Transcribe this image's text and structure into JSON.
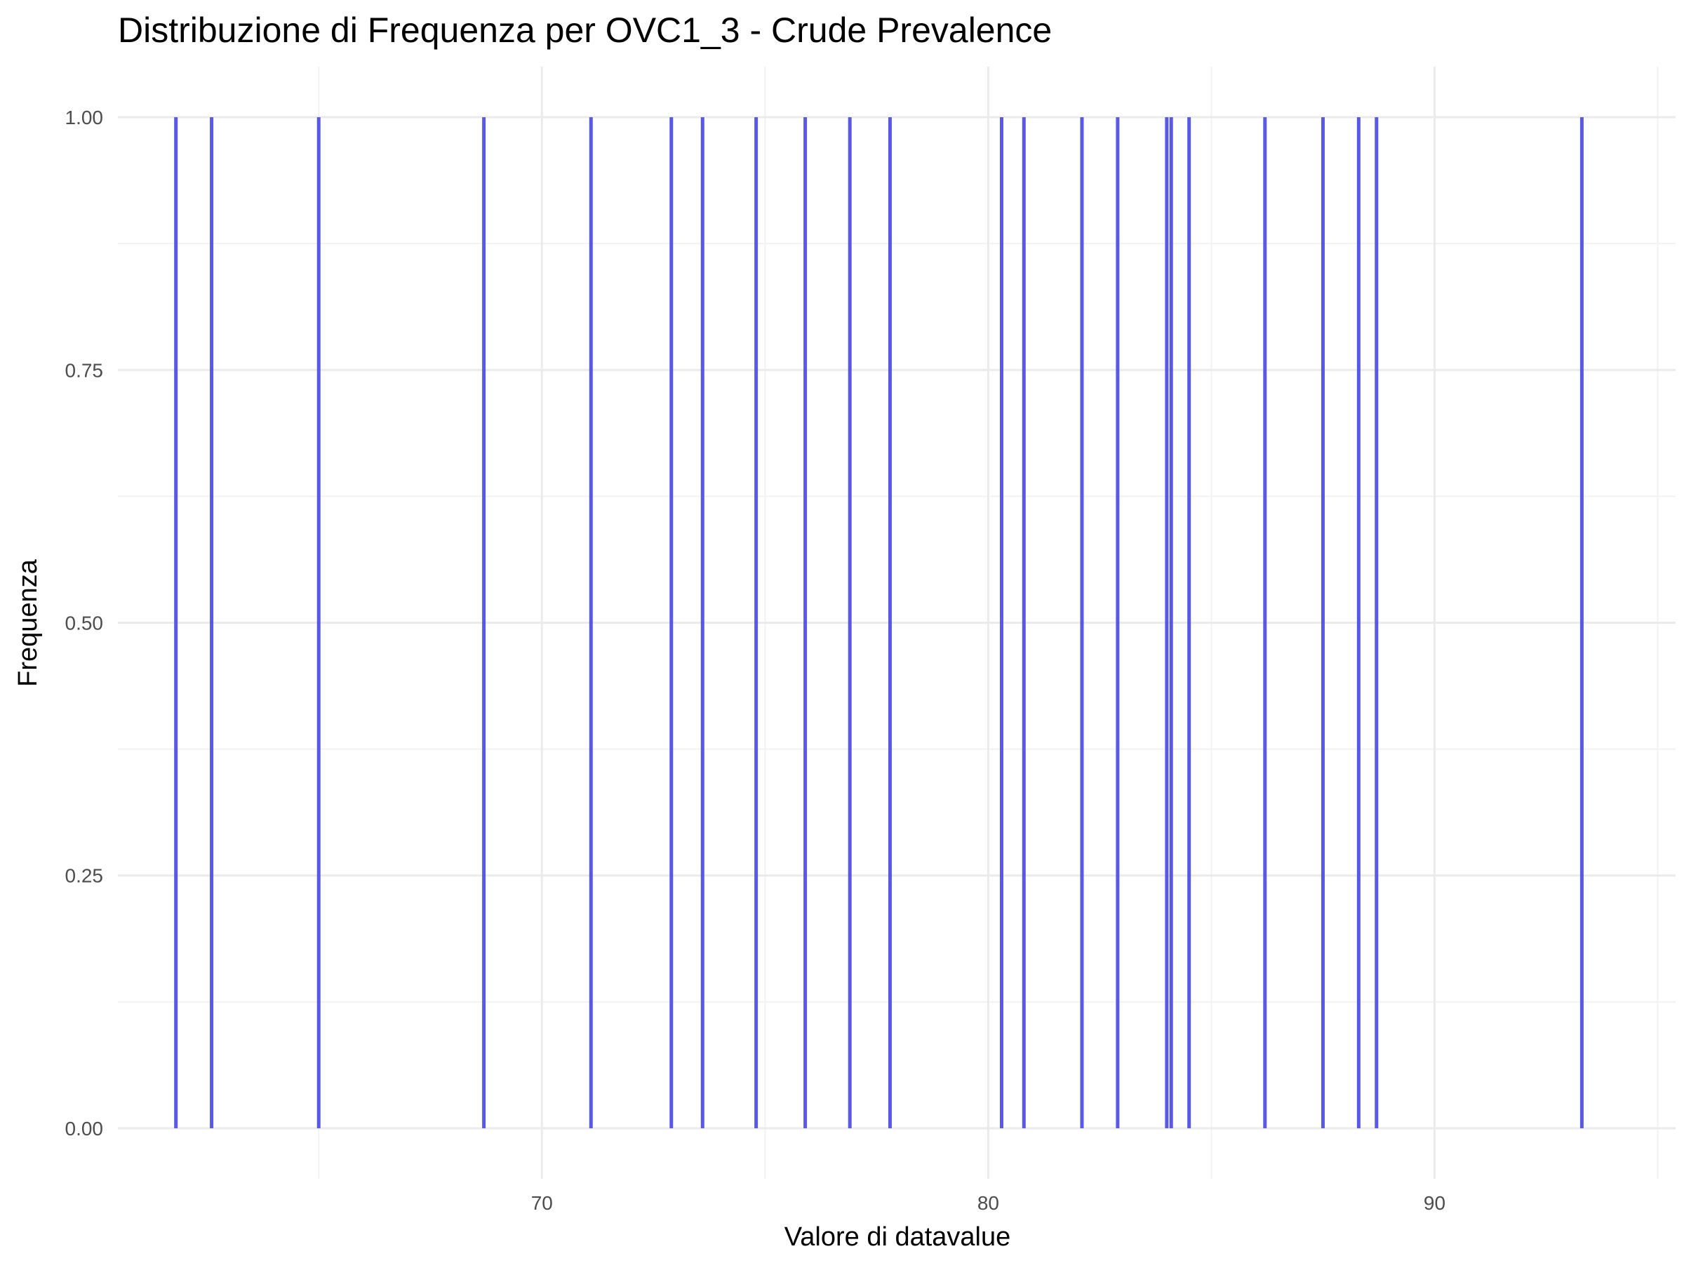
{
  "chart_data": {
    "type": "bar",
    "title": "Distribuzione di Frequenza per OVC1_3 - Crude Prevalence",
    "xlabel": "Valore di datavalue",
    "ylabel": "Frequenza",
    "xlim": [
      60.5,
      95.4
    ],
    "ylim": [
      -0.05,
      1.05
    ],
    "x_ticks": [
      70,
      80,
      90
    ],
    "y_ticks": [
      0.0,
      0.25,
      0.5,
      0.75,
      1.0
    ],
    "y_tick_labels": [
      "0.00",
      "0.25",
      "0.50",
      "0.75",
      "1.00"
    ],
    "bar_color": "#5050e6",
    "grid": true,
    "x": [
      61.8,
      62.6,
      65.0,
      68.7,
      71.1,
      72.9,
      73.6,
      74.8,
      75.9,
      76.9,
      77.8,
      80.3,
      80.8,
      82.1,
      82.9,
      84.0,
      84.1,
      84.5,
      86.2,
      87.5,
      88.3,
      88.7,
      93.3
    ],
    "values": [
      1,
      1,
      1,
      1,
      1,
      1,
      1,
      1,
      1,
      1,
      1,
      1,
      1,
      1,
      1,
      1,
      1,
      1,
      1,
      1,
      1,
      1,
      1
    ]
  }
}
